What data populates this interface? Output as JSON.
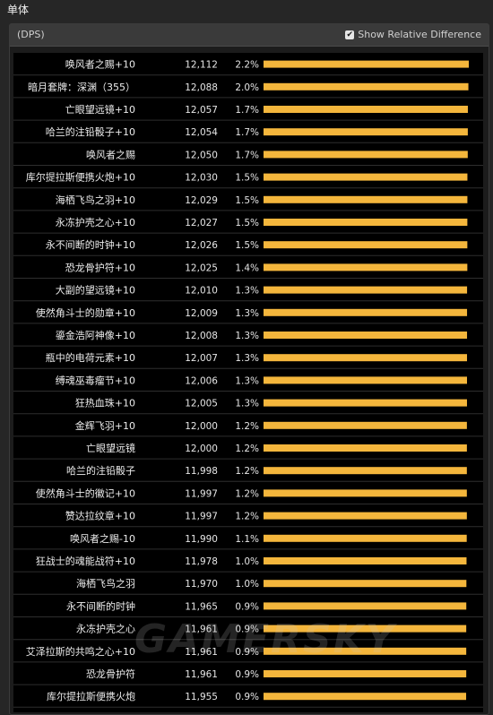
{
  "page_title": "单体",
  "panel": {
    "metric_label": "(DPS)",
    "toggle_label": "Show Relative Difference",
    "toggle_checked_mark": "✔"
  },
  "colors": {
    "bar": "#f4b63c",
    "row_line": "#2e2e2e",
    "background": "#000000"
  },
  "watermark": "GAMERSKY",
  "chart_data": {
    "type": "bar",
    "orientation": "horizontal",
    "categories": [
      "唤风者之赐+10",
      "暗月套牌：深渊（355）",
      "亡眼望远镜+10",
      "哈兰的注铅骰子+10",
      "唤风者之赐",
      "库尔提拉斯便携火炮+10",
      "海栖飞鸟之羽+10",
      "永冻护壳之心+10",
      "永不间断的时钟+10",
      "恐龙骨护符+10",
      "大副的望远镜+10",
      "使然角斗士的勋章+10",
      "鎏金浩阿神像+10",
      "瓶中的电荷元素+10",
      "缚魂巫毒瘤节+10",
      "狂热血珠+10",
      "金辉飞羽+10",
      "亡眼望远镜",
      "哈兰的注铅骰子",
      "使然角斗士的徽记+10",
      "赞达拉纹章+10",
      "唤风者之赐-10",
      "狂战士的魂能战符+10",
      "海栖飞鸟之羽",
      "永不间断的时钟",
      "永冻护壳之心",
      "艾泽拉斯的共鸣之心+10",
      "恐龙骨护符",
      "库尔提拉斯便携火炮"
    ],
    "values": [
      12112,
      12088,
      12057,
      12054,
      12050,
      12030,
      12029,
      12027,
      12026,
      12025,
      12010,
      12009,
      12008,
      12007,
      12006,
      12005,
      12000,
      12000,
      11998,
      11997,
      11997,
      11990,
      11978,
      11970,
      11965,
      11961,
      11961,
      11961,
      11955
    ],
    "value_labels": [
      "12,112",
      "12,088",
      "12,057",
      "12,054",
      "12,050",
      "12,030",
      "12,029",
      "12,027",
      "12,026",
      "12,025",
      "12,010",
      "12,009",
      "12,008",
      "12,007",
      "12,006",
      "12,005",
      "12,000",
      "12,000",
      "11,998",
      "11,997",
      "11,997",
      "11,990",
      "11,978",
      "11,970",
      "11,965",
      "11,961",
      "11,961",
      "11,961",
      "11,955"
    ],
    "relative_diff": [
      "2.2%",
      "2.0%",
      "1.7%",
      "1.7%",
      "1.7%",
      "1.5%",
      "1.5%",
      "1.5%",
      "1.5%",
      "1.4%",
      "1.3%",
      "1.3%",
      "1.3%",
      "1.3%",
      "1.3%",
      "1.3%",
      "1.2%",
      "1.2%",
      "1.2%",
      "1.2%",
      "1.2%",
      "1.1%",
      "1.0%",
      "1.0%",
      "0.9%",
      "0.9%",
      "0.9%",
      "0.9%",
      "0.9%"
    ],
    "xlim": [
      0,
      12112
    ]
  }
}
